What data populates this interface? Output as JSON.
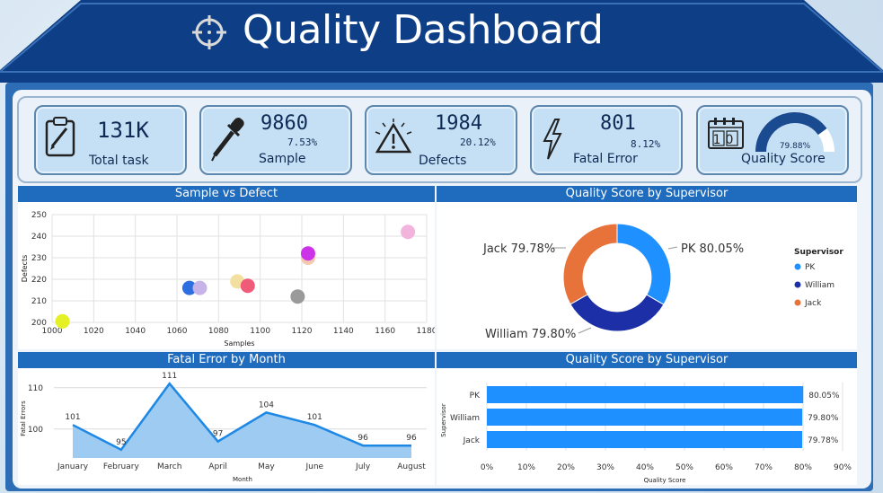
{
  "header": {
    "title": "Quality Dashboard"
  },
  "kpis": [
    {
      "value": "131K",
      "label": "Total task",
      "icon": "clipboard-icon"
    },
    {
      "value": "9860",
      "pct": "7.53%",
      "label": "Sample",
      "icon": "dropper-icon"
    },
    {
      "value": "1984",
      "pct": "20.12%",
      "label": "Defects",
      "icon": "warning-icon"
    },
    {
      "value": "801",
      "pct": "8.12%",
      "label": "Fatal Error",
      "icon": "lightning-icon"
    },
    {
      "label": "Quality Score",
      "gauge": 0.7988,
      "gauge_label": "79.88%",
      "icon": "calendar-icon",
      "icon_text": "10"
    }
  ],
  "scatter": {
    "title": "Sample vs Defect",
    "xlabel": "Samples",
    "ylabel": "Defects",
    "xticks": [
      "1000",
      "1020",
      "1040",
      "1060",
      "1080",
      "1100",
      "1120",
      "1140",
      "1160",
      "1180"
    ],
    "yticks": [
      "200",
      "210",
      "220",
      "230",
      "240",
      "250"
    ]
  },
  "donut": {
    "title": "Quality Score by Supervisor",
    "legend_title": "Supervisor",
    "labels": [
      "PK 80.05%",
      "William 79.80%",
      "Jack 79.78%"
    ]
  },
  "line": {
    "title": "Fatal Error by Month",
    "xlabel": "Month",
    "ylabel": "Fatal Errors",
    "yticks": [
      "100",
      "110"
    ]
  },
  "bar": {
    "title": "Quality Score by Supervisor",
    "xlabel": "Quality Score",
    "ylabel": "Supervisor",
    "xticks": [
      "0%",
      "10%",
      "20%",
      "30%",
      "40%",
      "50%",
      "60%",
      "70%",
      "80%",
      "90%"
    ]
  },
  "chart_data": [
    {
      "type": "scatter",
      "title": "Sample vs Defect",
      "xlabel": "Samples",
      "ylabel": "Defects",
      "xlim": [
        1000,
        1180
      ],
      "ylim": [
        200,
        250
      ],
      "points": [
        {
          "x": 1005,
          "y": 200.5,
          "color": "#e5f026"
        },
        {
          "x": 1066,
          "y": 216,
          "color": "#2d6fe0"
        },
        {
          "x": 1071,
          "y": 216,
          "color": "#c6b4e8"
        },
        {
          "x": 1089,
          "y": 219,
          "color": "#f3e0a0"
        },
        {
          "x": 1094,
          "y": 217,
          "color": "#f05b7a"
        },
        {
          "x": 1118,
          "y": 212,
          "color": "#9a9a9a"
        },
        {
          "x": 1123,
          "y": 230,
          "color": "#f3c9b0"
        },
        {
          "x": 1123,
          "y": 232,
          "color": "#cc33e8"
        },
        {
          "x": 1171,
          "y": 242,
          "color": "#f2b4dc"
        }
      ]
    },
    {
      "type": "pie",
      "title": "Quality Score by Supervisor",
      "series": [
        {
          "name": "PK",
          "value": 80.05,
          "color": "#1e90ff"
        },
        {
          "name": "William",
          "value": 79.8,
          "color": "#1c2fa6"
        },
        {
          "name": "Jack",
          "value": 79.78,
          "color": "#e8733a"
        }
      ]
    },
    {
      "type": "area",
      "title": "Fatal Error by Month",
      "xlabel": "Month",
      "ylabel": "Fatal Errors",
      "categories": [
        "January",
        "February",
        "March",
        "April",
        "May",
        "June",
        "July",
        "August"
      ],
      "values": [
        101,
        95,
        111,
        97,
        104,
        101,
        96,
        96
      ],
      "ylim": [
        93,
        113
      ]
    },
    {
      "type": "bar",
      "title": "Quality Score by Supervisor",
      "xlabel": "Quality Score",
      "ylabel": "Supervisor",
      "categories": [
        "PK",
        "William",
        "Jack"
      ],
      "values": [
        80.05,
        79.8,
        79.78
      ],
      "labels": [
        "80.05%",
        "79.80%",
        "79.78%"
      ],
      "xlim": [
        0,
        90
      ]
    }
  ]
}
